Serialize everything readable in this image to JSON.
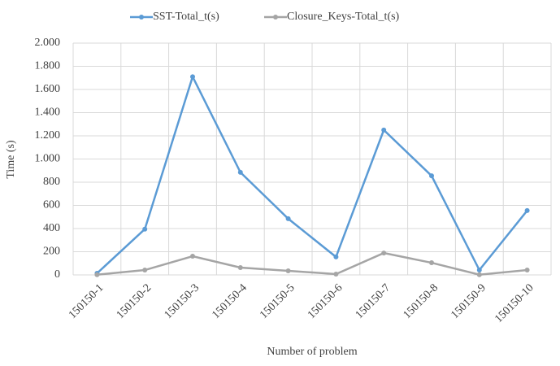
{
  "chart_data": {
    "type": "line",
    "x_label": "Number of problem",
    "y_label": "Time (s)",
    "categories": [
      "150150-1",
      "150150-2",
      "150150-3",
      "150150-4",
      "150150-5",
      "150150-6",
      "150150-7",
      "150150-8",
      "150150-9",
      "150150-10"
    ],
    "series": [
      {
        "name": "SST-Total_t(s)",
        "color": "#5b9bd5",
        "values": [
          14,
          395,
          1710,
          885,
          485,
          155,
          1250,
          855,
          42,
          555
        ]
      },
      {
        "name": "Closure_Keys-Total_t(s)",
        "color": "#a5a5a5",
        "values": [
          2,
          42,
          161,
          63,
          35,
          7,
          189,
          105,
          2,
          42
        ]
      }
    ],
    "ylim": [
      0,
      2000
    ],
    "yticks": [
      0,
      200,
      400,
      600,
      800,
      {
        "value": 1000,
        "label": "1.000"
      },
      {
        "value": 1200,
        "label": "1.200"
      },
      {
        "value": 1400,
        "label": "1.400"
      },
      {
        "value": 1600,
        "label": "1.600"
      },
      {
        "value": 1800,
        "label": "1.800"
      },
      {
        "value": 2000,
        "label": "2.000"
      }
    ],
    "grid": true,
    "legend": "top"
  }
}
